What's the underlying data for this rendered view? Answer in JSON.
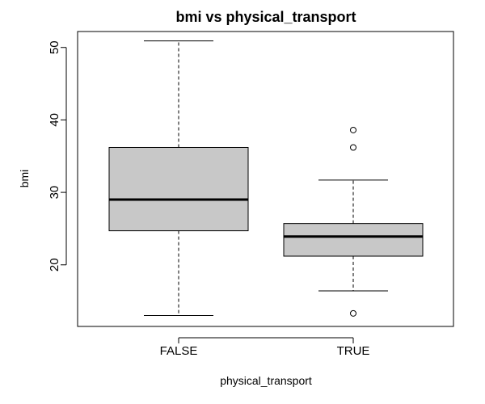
{
  "chart_data": {
    "type": "boxplot",
    "title": "bmi vs physical_transport",
    "xlabel": "physical_transport",
    "ylabel": "bmi",
    "ylim": [
      11.5,
      52.2
    ],
    "y_ticks": [
      20,
      30,
      40,
      50
    ],
    "categories": [
      "FALSE",
      "TRUE"
    ],
    "box_fill": "#c8c8c8",
    "line_color": "#000000",
    "series": [
      {
        "name": "FALSE",
        "whisker_low": 13.0,
        "q1": 24.7,
        "median": 29.0,
        "q3": 36.2,
        "whisker_high": 50.9,
        "outliers": []
      },
      {
        "name": "TRUE",
        "whisker_low": 16.4,
        "q1": 21.2,
        "median": 23.9,
        "q3": 25.7,
        "whisker_high": 31.7,
        "outliers": [
          13.3,
          36.2,
          38.6
        ]
      }
    ]
  }
}
